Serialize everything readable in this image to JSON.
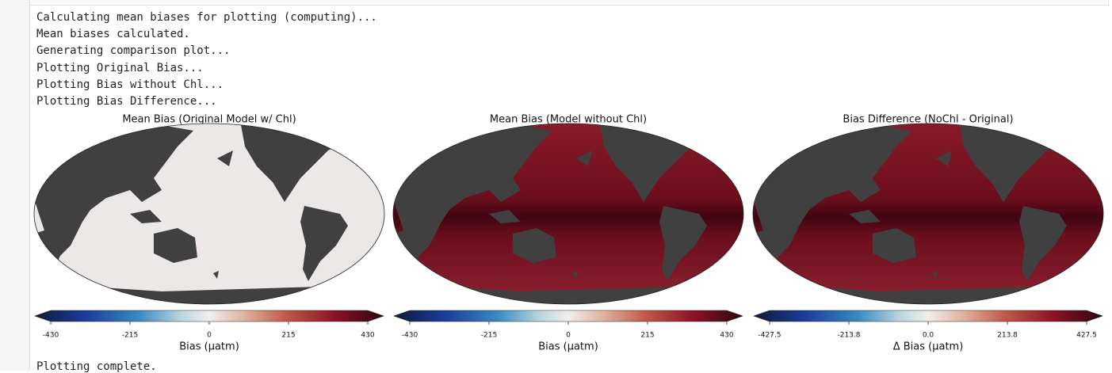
{
  "output": {
    "lines": [
      "Calculating mean biases for plotting (computing)...",
      "Mean biases calculated.",
      "Generating comparison plot...",
      "Plotting Original Bias...",
      "Plotting Bias without Chl...",
      "Plotting Bias Difference..."
    ],
    "panels": [
      {
        "title": "Mean Bias (Original Model w/ Chl)",
        "colorbar": {
          "xlim": [
            -430,
            430
          ],
          "xticks": [
            -430,
            -215,
            0,
            215,
            430
          ],
          "label": "Bias (µatm)"
        }
      },
      {
        "title": "Mean Bias (Model without Chl)",
        "colorbar": {
          "xlim": [
            -430,
            430
          ],
          "xticks": [
            -430,
            -215,
            0,
            215,
            430
          ],
          "label": "Bias (µatm)"
        }
      },
      {
        "title": "Bias Difference (NoChl - Original)",
        "colorbar": {
          "xlim": [
            -427.5,
            427.5
          ],
          "xticks": [
            -427.5,
            -213.8,
            {
              "value": 0,
              "label": "0.0"
            },
            213.8,
            427.5
          ],
          "label": "Δ Bias (µatm)"
        }
      }
    ],
    "footer": "Plotting complete."
  }
}
